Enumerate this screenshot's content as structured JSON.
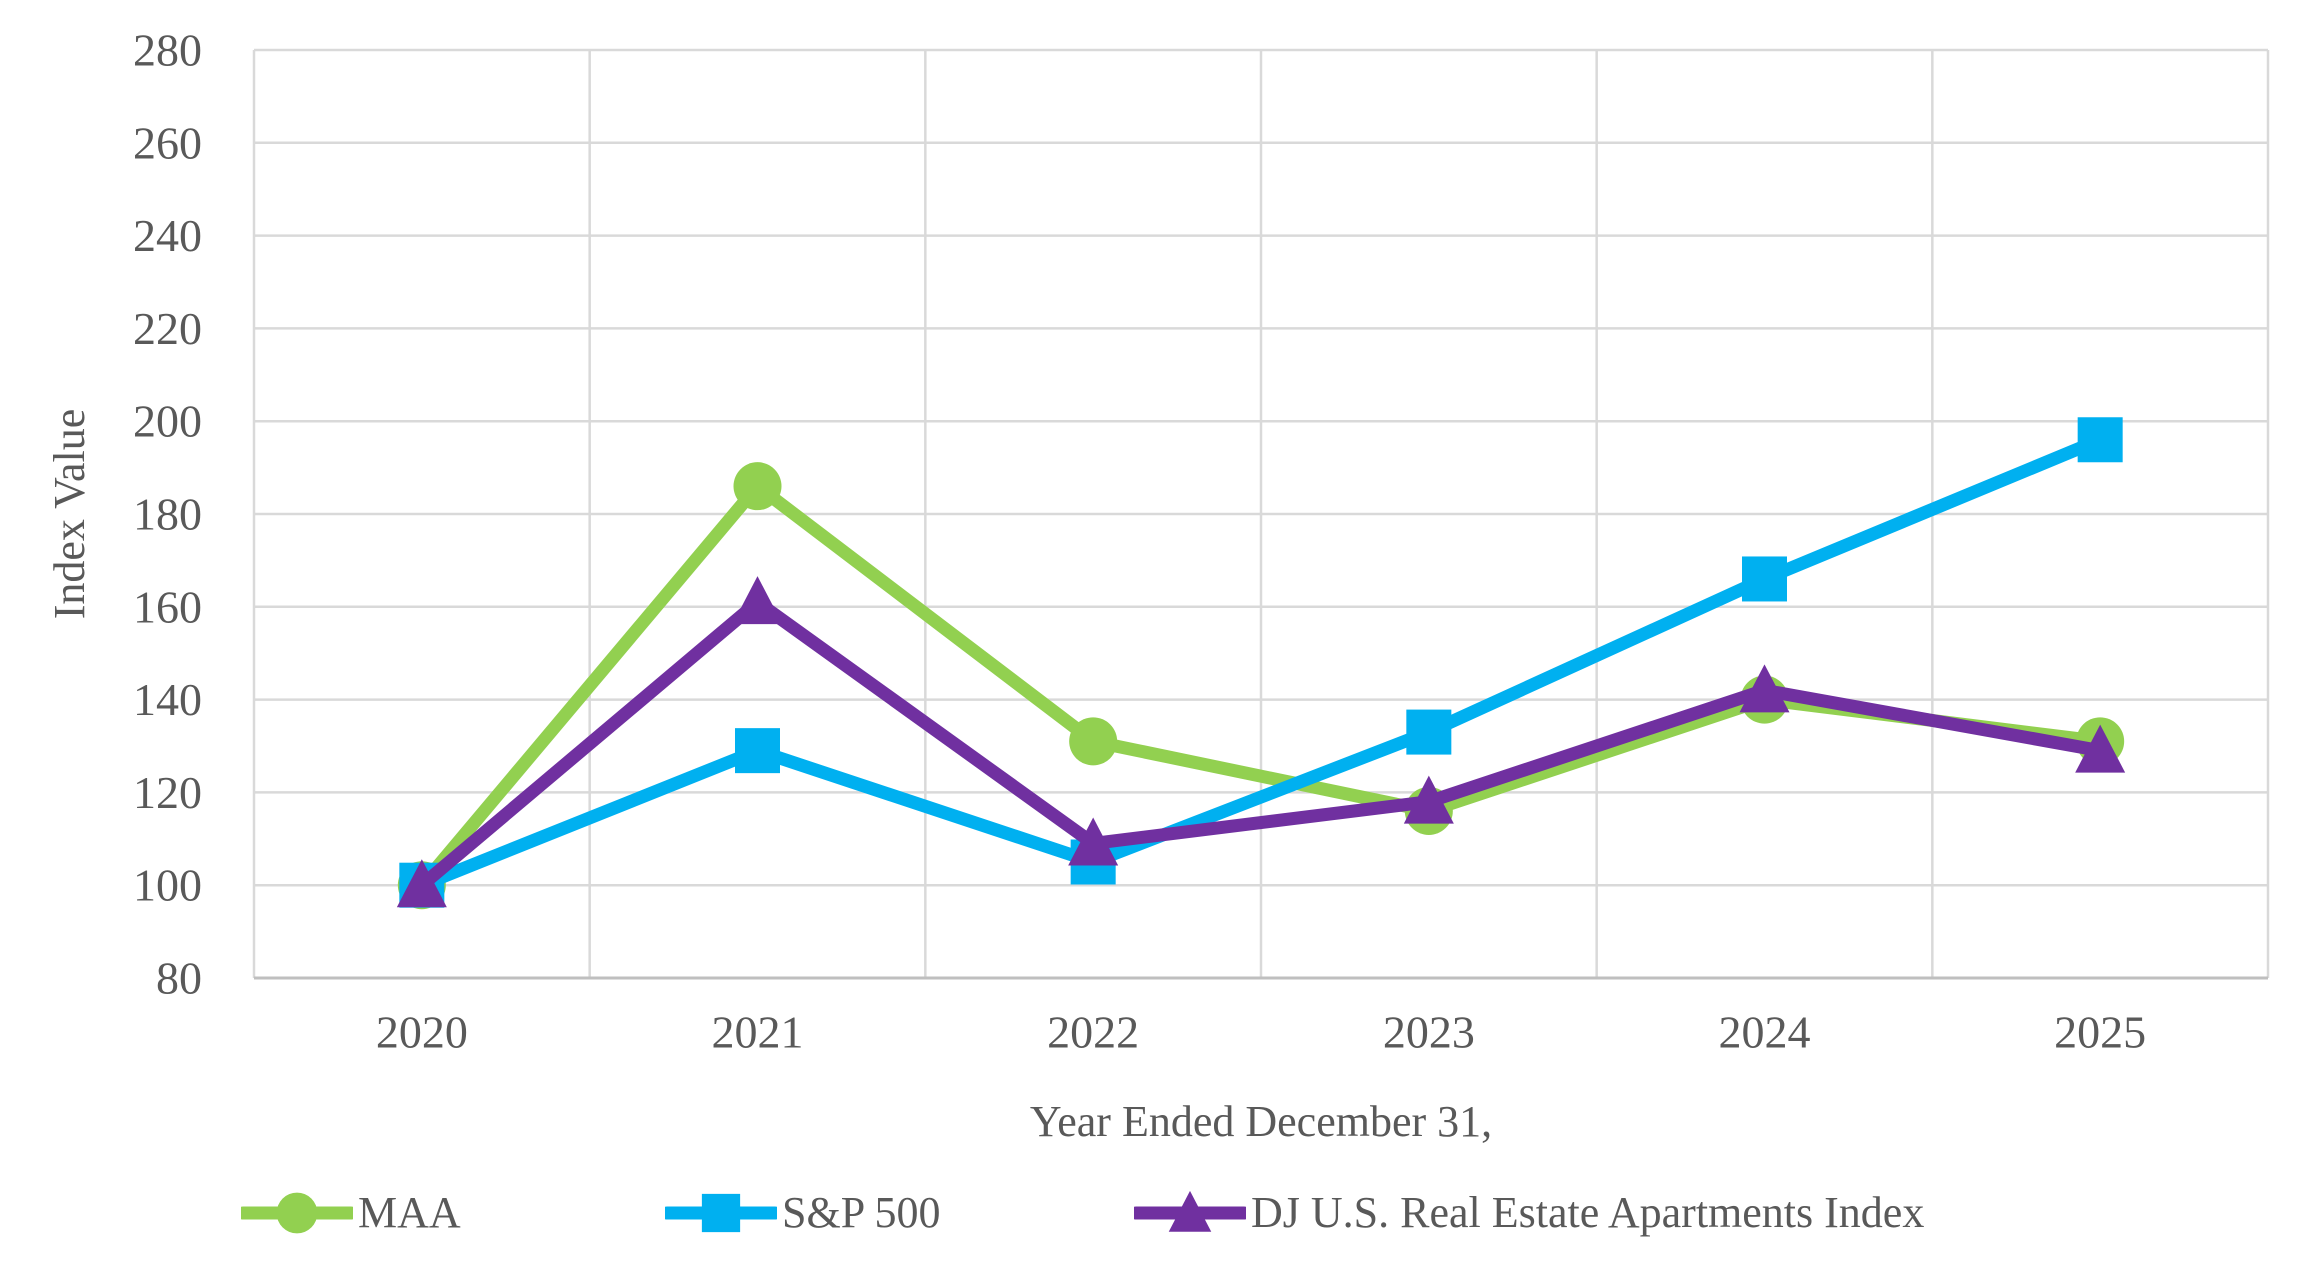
{
  "chart_data": {
    "type": "line",
    "title": "",
    "xlabel": "Year Ended December 31,",
    "ylabel": "Index Value",
    "categories": [
      "2020",
      "2021",
      "2022",
      "2023",
      "2024",
      "2025"
    ],
    "series": [
      {
        "name": "MAA",
        "marker": "circle",
        "color": "#92D050",
        "values": [
          100,
          186,
          131,
          116,
          140,
          131
        ]
      },
      {
        "name": "S&P 500",
        "marker": "square",
        "color": "#00B0F0",
        "values": [
          100,
          129,
          105,
          133,
          166,
          196
        ]
      },
      {
        "name": "DJ U.S. Real Estate Apartments Index",
        "marker": "triangle",
        "color": "#7030A0",
        "values": [
          100,
          161,
          109,
          118,
          142,
          129
        ]
      }
    ],
    "ylim": [
      80,
      280
    ],
    "ytick_step": 20,
    "yticks": [
      80,
      100,
      120,
      140,
      160,
      180,
      200,
      220,
      240,
      260,
      280
    ],
    "grid": true,
    "legend_position": "bottom"
  },
  "styles": {
    "text_color": "#595959",
    "grid_color": "#D9D9D9",
    "axis_line_color": "#BFBFBF",
    "background": "#FFFFFF"
  }
}
